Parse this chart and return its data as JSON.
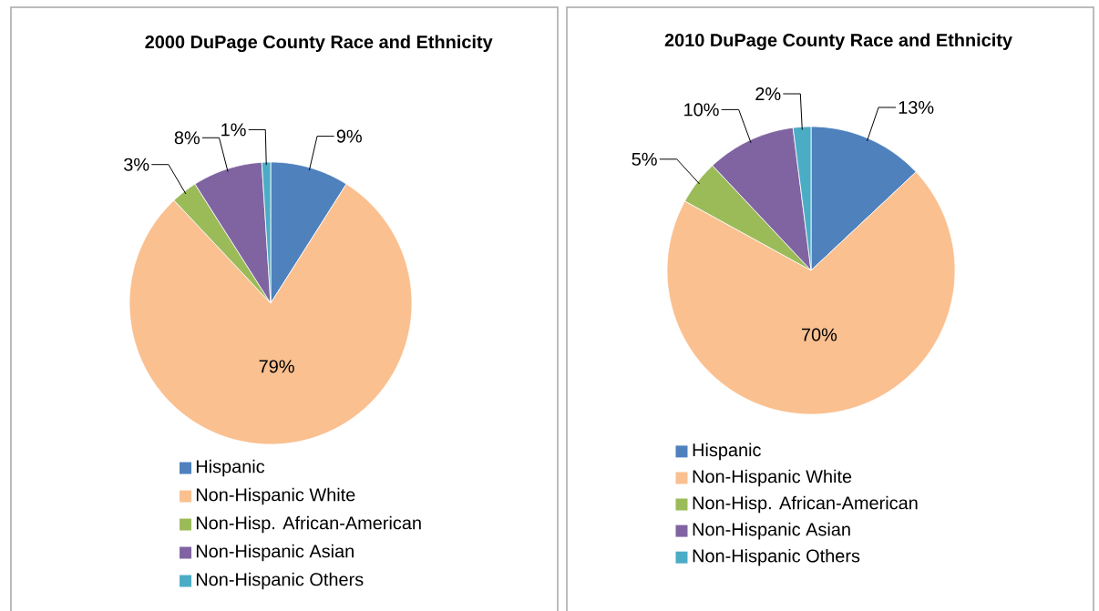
{
  "chart_data": [
    {
      "type": "pie",
      "title": "2000 DuPage County Race and Ethnicity",
      "categories": [
        "Hispanic",
        "Non-Hispanic White",
        "Non-Hisp. African-American",
        "Non-Hispanic Asian",
        "Non-Hispanic Others"
      ],
      "values": [
        9,
        79,
        3,
        8,
        1
      ],
      "value_labels": [
        "9%",
        "79%",
        "3%",
        "8%",
        "1%"
      ],
      "colors": [
        "#4f81bd",
        "#fac090",
        "#9bbb59",
        "#8064a2",
        "#4bacc6"
      ],
      "legend": "bottom"
    },
    {
      "type": "pie",
      "title": "2010 DuPage County Race and Ethnicity",
      "categories": [
        "Hispanic",
        "Non-Hispanic White",
        "Non-Hisp. African-American",
        "Non-Hispanic Asian",
        "Non-Hispanic Others"
      ],
      "values": [
        13,
        70,
        5,
        10,
        2
      ],
      "value_labels": [
        "13%",
        "70%",
        "5%",
        "10%",
        "2%"
      ],
      "colors": [
        "#4f81bd",
        "#fac090",
        "#9bbb59",
        "#8064a2",
        "#4bacc6"
      ],
      "legend": "bottom"
    }
  ]
}
